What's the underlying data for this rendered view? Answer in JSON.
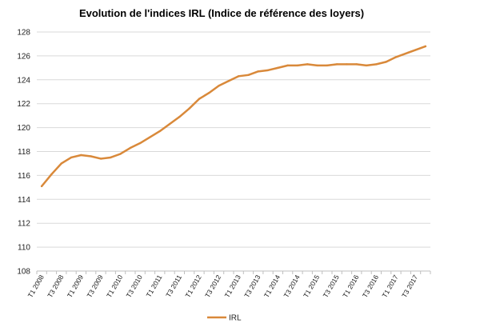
{
  "chart_data": {
    "type": "line",
    "title": "Evolution de l'indices IRL (Indice de référence des loyers)",
    "ylim": [
      108,
      128
    ],
    "yticks": [
      108,
      110,
      112,
      114,
      116,
      118,
      120,
      122,
      124,
      126,
      128
    ],
    "grid": true,
    "legend_position": "bottom",
    "series_color": "#d9893a",
    "x": [
      "T1 2008",
      "T2 2008",
      "T3 2008",
      "T4 2008",
      "T1 2009",
      "T2 2009",
      "T3 2009",
      "T4 2009",
      "T1 2010",
      "T2 2010",
      "T3 2010",
      "T4 2010",
      "T1 2011",
      "T2 2011",
      "T3 2011",
      "T4 2011",
      "T1 2012",
      "T2 2012",
      "T3 2012",
      "T4 2012",
      "T1 2013",
      "T2 2013",
      "T3 2013",
      "T4 2013",
      "T1 2014",
      "T2 2014",
      "T3 2014",
      "T4 2014",
      "T1 2015",
      "T2 2015",
      "T3 2015",
      "T4 2015",
      "T1 2016",
      "T2 2016",
      "T3 2016",
      "T4 2016",
      "T1 2017",
      "T2 2017",
      "T3 2017",
      "T4 2017"
    ],
    "xtick_labels": [
      "T1 2008",
      "T3 2008",
      "T1 2009",
      "T3 2009",
      "T1 2010",
      "T3 2010",
      "T1 2011",
      "T3 2011",
      "T1 2012",
      "T3 2012",
      "T1 2013",
      "T3 2013",
      "T1 2014",
      "T3 2014",
      "T1 2015",
      "T3 2015",
      "T1 2016",
      "T3 2016",
      "T1 2017",
      "T3 2017"
    ],
    "series": [
      {
        "name": "IRL",
        "values": [
          115.1,
          116.1,
          117.0,
          117.5,
          117.7,
          117.6,
          117.4,
          117.5,
          117.8,
          118.3,
          118.7,
          119.2,
          119.7,
          120.3,
          120.9,
          121.6,
          122.4,
          122.9,
          123.5,
          123.9,
          124.3,
          124.4,
          124.7,
          124.8,
          125.0,
          125.2,
          125.2,
          125.3,
          125.2,
          125.2,
          125.3,
          125.3,
          125.3,
          125.2,
          125.3,
          125.5,
          125.9,
          126.2,
          126.5,
          126.8
        ]
      }
    ]
  }
}
